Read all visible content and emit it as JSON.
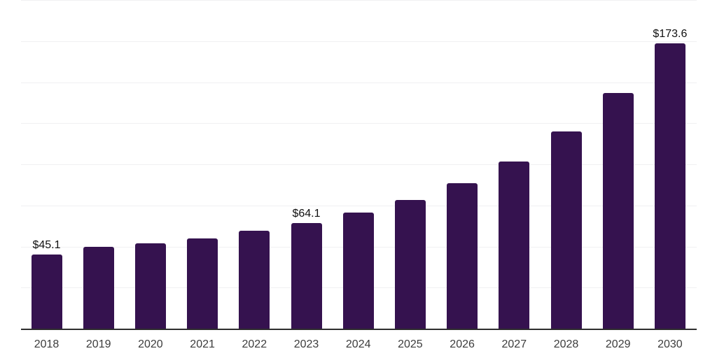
{
  "chart_data": {
    "type": "bar",
    "title": "",
    "xlabel": "",
    "ylabel": "",
    "categories": [
      "2018",
      "2019",
      "2020",
      "2021",
      "2022",
      "2023",
      "2024",
      "2025",
      "2026",
      "2027",
      "2028",
      "2029",
      "2030"
    ],
    "values": [
      45.1,
      50.0,
      52.1,
      54.9,
      59.6,
      64.1,
      70.5,
      78.4,
      88.7,
      101.9,
      120.1,
      143.6,
      173.6
    ],
    "annotations": [
      {
        "index": 0,
        "text": "$45.1"
      },
      {
        "index": 5,
        "text": "$64.1"
      },
      {
        "index": 12,
        "text": "$173.6"
      }
    ],
    "ylim": [
      0,
      200
    ],
    "gridline_interval": 25,
    "grid": "horizontal",
    "legend_position": "none",
    "y_axis_labels_visible": false,
    "value_prefix": "$"
  },
  "colors": {
    "bar_fill": "#35124F",
    "axis_line": "#2E2E2E",
    "gridline": "#F0F0F2",
    "value_label_text": "#101010",
    "tick_label_text": "#3C3C3C",
    "background": "#FFFFFF"
  }
}
